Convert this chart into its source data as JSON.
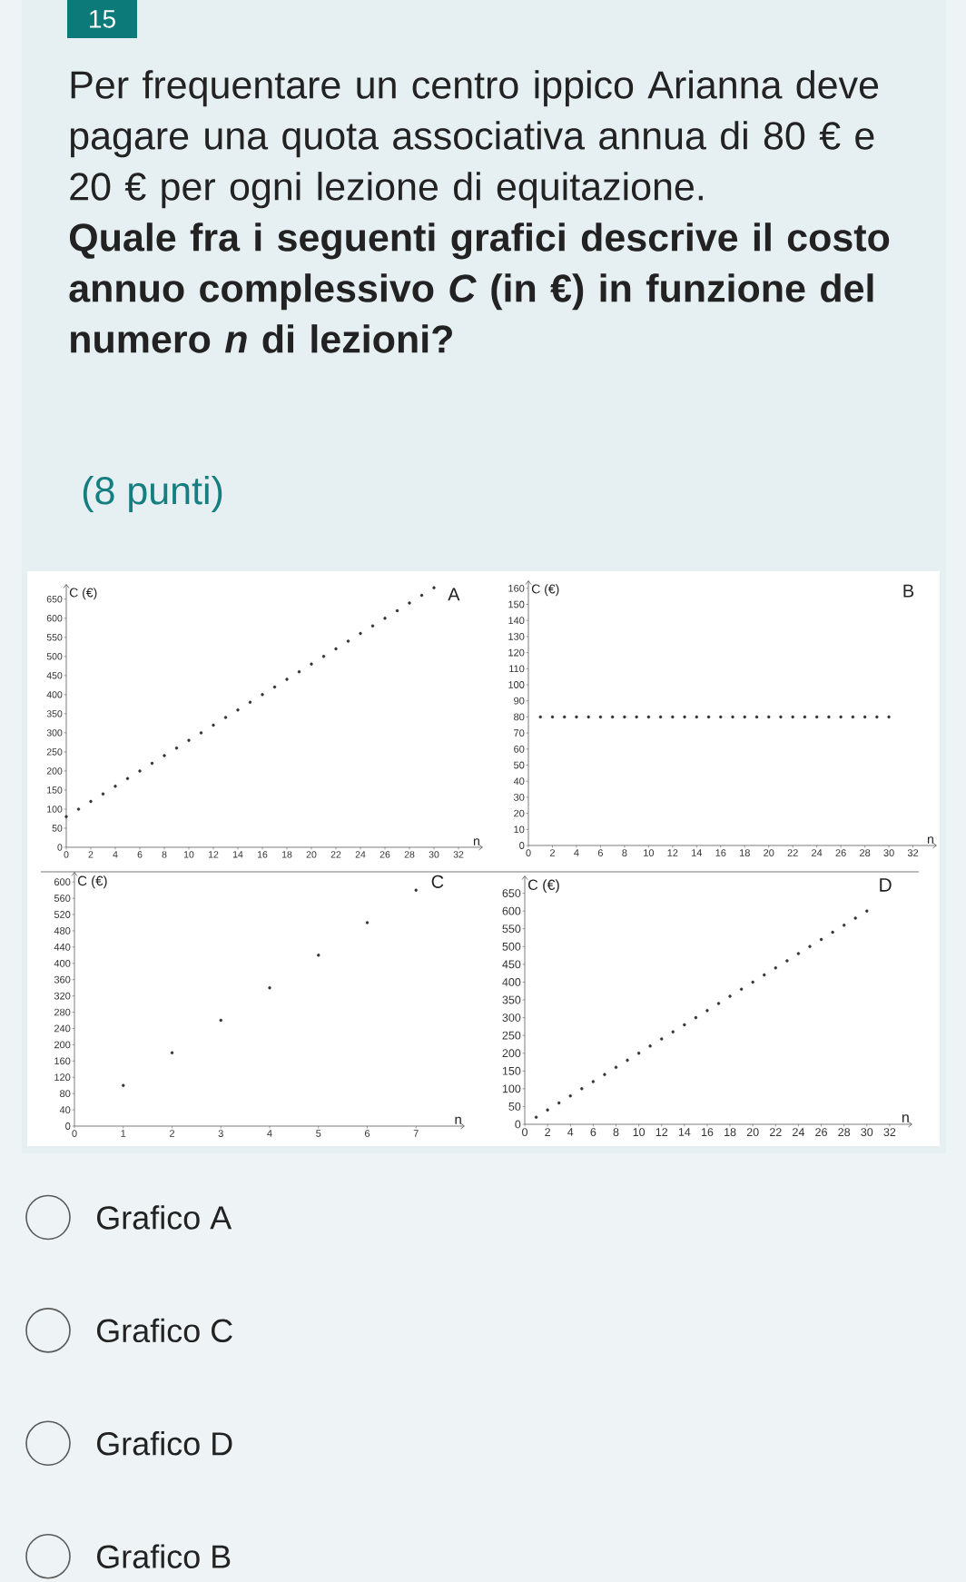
{
  "chart_data": [
    {
      "type": "other",
      "title": "Per frequentare un centro ippico Arianna deve pagare una quota associativa annua di 80 € e 20 € per ogni lezione di equitazione.",
      "subtitle": "Quale fra i seguenti grafici descrive il costo annuo complessivo *C* (in €) in funzione del numero *n* di lezioni?",
      "annotations": [
        "15",
        "(8 punti)"
      ]
    },
    {
      "type": "scatter",
      "title": "A",
      "xlabel": "n",
      "ylabel": "C (€)",
      "color": "#333333",
      "marker": "circle",
      "x": [
        0,
        1,
        2,
        3,
        4,
        5,
        6,
        7,
        8,
        9,
        10,
        11,
        12,
        13,
        14,
        15,
        16,
        17,
        18,
        19,
        20,
        21,
        22,
        23,
        24,
        25,
        26,
        27,
        28,
        29,
        30
      ],
      "values": [
        80,
        100,
        120,
        140,
        160,
        180,
        200,
        220,
        240,
        260,
        280,
        300,
        320,
        340,
        360,
        380,
        400,
        420,
        440,
        460,
        480,
        500,
        520,
        540,
        560,
        580,
        600,
        620,
        640,
        660,
        680
      ],
      "xlim": [
        0,
        34
      ],
      "ylim": [
        0,
        690
      ],
      "xticks": [
        0,
        2,
        4,
        6,
        8,
        10,
        12,
        14,
        16,
        18,
        20,
        22,
        24,
        26,
        28,
        30,
        32
      ],
      "yticks": [
        0,
        50,
        100,
        150,
        200,
        250,
        300,
        350,
        400,
        450,
        500,
        550,
        600,
        650
      ]
    },
    {
      "type": "scatter",
      "title": "B",
      "xlabel": "n",
      "ylabel": "C (€)",
      "color": "#333333",
      "marker": "circle",
      "x": [
        1,
        2,
        3,
        4,
        5,
        6,
        7,
        8,
        9,
        10,
        11,
        12,
        13,
        14,
        15,
        16,
        17,
        18,
        19,
        20,
        21,
        22,
        23,
        24,
        25,
        26,
        27,
        28,
        29,
        30
      ],
      "values": [
        80,
        80,
        80,
        80,
        80,
        80,
        80,
        80,
        80,
        80,
        80,
        80,
        80,
        80,
        80,
        80,
        80,
        80,
        80,
        80,
        80,
        80,
        80,
        80,
        80,
        80,
        80,
        80,
        80,
        80
      ],
      "xlim": [
        0,
        34
      ],
      "ylim": [
        0,
        165
      ],
      "xticks": [
        0,
        2,
        4,
        6,
        8,
        10,
        12,
        14,
        16,
        18,
        20,
        22,
        24,
        26,
        28,
        30,
        32
      ],
      "yticks": [
        0,
        10,
        20,
        30,
        40,
        50,
        60,
        70,
        80,
        90,
        100,
        110,
        120,
        130,
        140,
        150,
        160
      ]
    },
    {
      "type": "scatter",
      "title": "C",
      "xlabel": "n",
      "ylabel": "C (€)",
      "color": "#333333",
      "marker": "circle",
      "x": [
        1,
        2,
        3,
        4,
        5,
        6,
        7
      ],
      "values": [
        100,
        180,
        260,
        340,
        420,
        500,
        580
      ],
      "xlim": [
        0,
        8
      ],
      "ylim": [
        0,
        625
      ],
      "xticks": [
        0,
        1,
        2,
        3,
        4,
        5,
        6,
        7
      ],
      "yticks": [
        0,
        40,
        80,
        120,
        160,
        200,
        240,
        280,
        320,
        360,
        400,
        440,
        480,
        520,
        560,
        600
      ]
    },
    {
      "type": "scatter",
      "title": "D",
      "xlabel": "n",
      "ylabel": "C (€)",
      "color": "#333333",
      "marker": "circle",
      "x": [
        1,
        2,
        3,
        4,
        5,
        6,
        7,
        8,
        9,
        10,
        11,
        12,
        13,
        14,
        15,
        16,
        17,
        18,
        19,
        20,
        21,
        22,
        23,
        24,
        25,
        26,
        27,
        28,
        29,
        30
      ],
      "values": [
        20,
        40,
        60,
        80,
        100,
        120,
        140,
        160,
        180,
        200,
        220,
        240,
        260,
        280,
        300,
        320,
        340,
        360,
        380,
        400,
        420,
        440,
        460,
        480,
        500,
        520,
        540,
        560,
        580,
        600
      ],
      "xlim": [
        0,
        34
      ],
      "ylim": [
        0,
        700
      ],
      "xticks": [
        0,
        2,
        4,
        6,
        8,
        10,
        12,
        14,
        16,
        18,
        20,
        22,
        24,
        26,
        28,
        30,
        32
      ],
      "yticks": [
        0,
        50,
        100,
        150,
        200,
        250,
        300,
        350,
        400,
        450,
        500,
        550,
        600,
        650
      ]
    },
    {
      "type": "other",
      "annotations": [
        "Grafico A",
        "Grafico C",
        "Grafico D",
        "Grafico B"
      ]
    }
  ]
}
